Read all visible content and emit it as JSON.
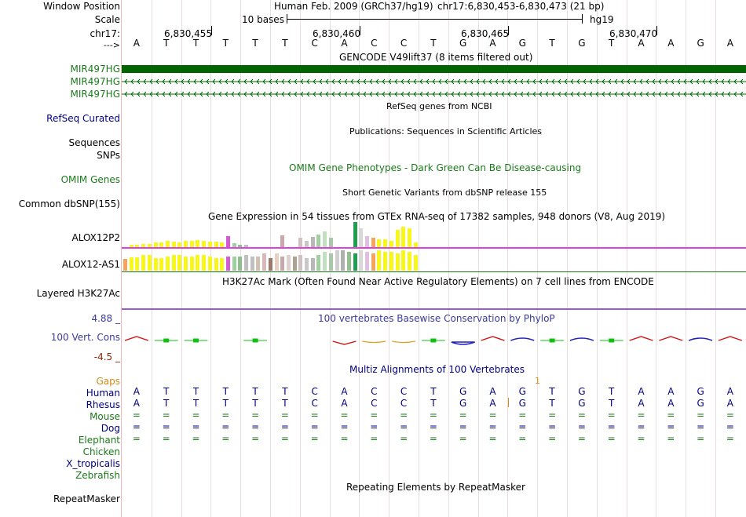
{
  "left_labels": {
    "window_position": "Window Position",
    "scale": "Scale",
    "chr": "chr17:",
    "strand": "--->",
    "gencode_1": "MIR497HG",
    "gencode_2": "MIR497HG",
    "gencode_3": "MIR497HG",
    "refseq": "RefSeq Curated",
    "sequences": "Sequences",
    "snps": "SNPs",
    "omim": "OMIM Genes",
    "common_dbsnp": "Common dbSNP(155)",
    "alox12p2": "ALOX12P2",
    "alox12as1": "ALOX12-AS1",
    "h3k27ac": "Layered H3K27Ac",
    "phylop_max": "4.88 _",
    "cons": "100 Vert. Cons",
    "phylop_min": "-4.5 _",
    "gaps": "Gaps",
    "human": "Human",
    "rhesus": "Rhesus",
    "mouse": "Mouse",
    "dog": "Dog",
    "elephant": "Elephant",
    "chicken": "Chicken",
    "xtrop": "X_tropicalis",
    "zebrafish": "Zebrafish",
    "repeatmasker": "RepeatMasker"
  },
  "header": {
    "assembly": "Human Feb. 2009 (GRCh37/hg19)",
    "position": "chr17:6,830,453-6,830,473 (21 bp)",
    "scale_text": "10 bases",
    "scale_db": "hg19",
    "ruler": [
      "6,830,455",
      "6,830,460",
      "6,830,465",
      "6,830,470"
    ]
  },
  "sequence": [
    "A",
    "T",
    "T",
    "T",
    "T",
    "T",
    "C",
    "A",
    "C",
    "C",
    "T",
    "G",
    "A",
    "G",
    "T",
    "G",
    "T",
    "A",
    "A",
    "G",
    "A"
  ],
  "rhesus_seq": [
    "A",
    "T",
    "T",
    "T",
    "T",
    "T",
    "C",
    "A",
    "C",
    "C",
    "T",
    "G",
    "A",
    "G",
    "T",
    "G",
    "T",
    "A",
    "A",
    "G",
    "A"
  ],
  "tracks": {
    "gencode_title": "GENCODE V49lift37 (8 items filtered out)",
    "refseq_title": "RefSeq genes from NCBI",
    "pubs_title": "Publications: Sequences in Scientific Articles",
    "omim_title": "OMIM Gene Phenotypes - Dark Green Can Be Disease-causing",
    "dbsnp_title": "Short Genetic Variants from dbSNP release 155",
    "gtex_title": "Gene Expression in 54 tissues from GTEx RNA-seq of 17382 samples, 948 donors (V8, Aug 2019)",
    "h3k27ac_title": "H3K27Ac Mark (Often Found Near Active Regulatory Elements) on 7 cell lines from ENCODE",
    "phylop_title": "100 vertebrates Basewise Conservation by PhyloP",
    "multiz_title": "Multiz Alignments of 100 Vertebrates",
    "gap_count": "1",
    "repeat_title": "Repeating Elements by RepeatMasker"
  },
  "colors": {
    "gene_green": "#006400",
    "label_green": "#1a7a1a",
    "navy": "#000080",
    "phylop_blue": "#3a3a9a",
    "gaps_orange": "#d38a1a",
    "pink_line": "#e040e0"
  }
}
